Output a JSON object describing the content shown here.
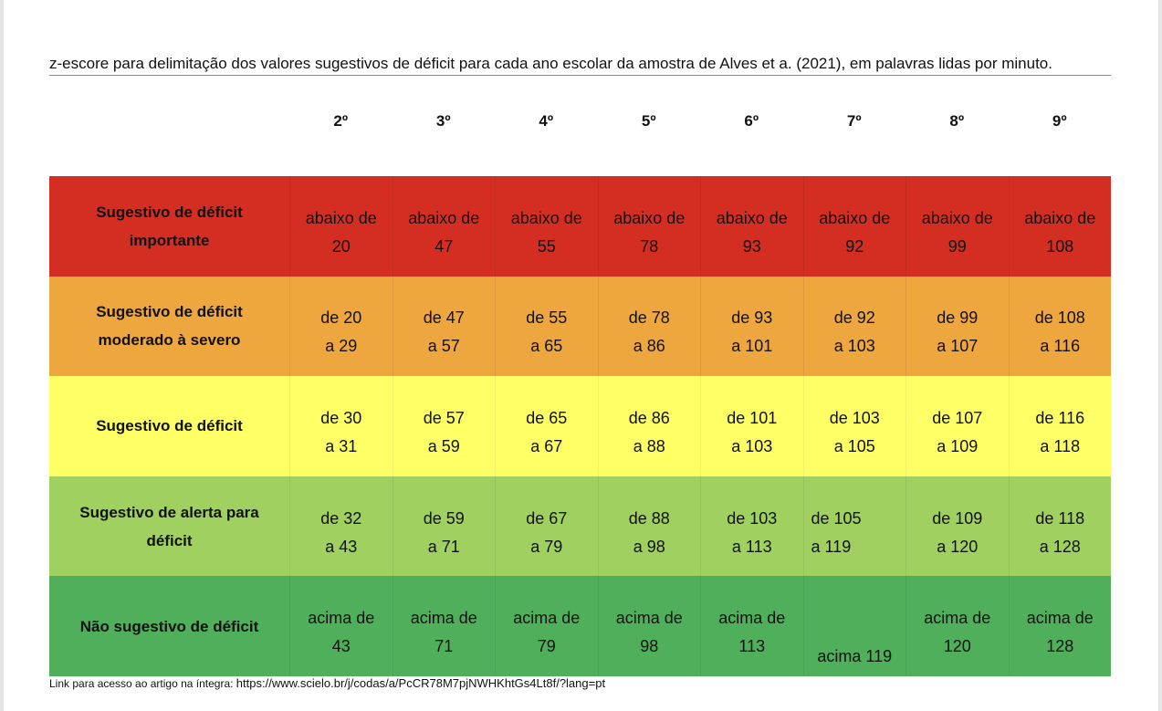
{
  "caption": "z-escore para delimitação dos valores sugestivos de déficit para cada ano escolar da amostra de Alves et a. (2021), em palavras lidas por minuto.",
  "grades": [
    "2º",
    "3º",
    "4º",
    "5º",
    "6º",
    "7º",
    "8º",
    "9º"
  ],
  "rows": [
    {
      "label": "Sugestivo de déficit importante",
      "color": "#d42e22",
      "cells": [
        [
          "abaixo de",
          "20"
        ],
        [
          "abaixo de",
          "47"
        ],
        [
          "abaixo de",
          "55"
        ],
        [
          "abaixo de",
          "78"
        ],
        [
          "abaixo de",
          "93"
        ],
        [
          "abaixo de",
          "92"
        ],
        [
          "abaixo de",
          "99"
        ],
        [
          "abaixo de",
          "108"
        ]
      ]
    },
    {
      "label": "Sugestivo de déficit moderado à severo",
      "color": "#eea63f",
      "cells": [
        [
          "de 20",
          "a 29"
        ],
        [
          "de 47",
          "a 57"
        ],
        [
          "de 55",
          "a 65"
        ],
        [
          "de 78",
          "a 86"
        ],
        [
          "de 93",
          "a 101"
        ],
        [
          "de 92",
          "a 103"
        ],
        [
          "de 99",
          "a 107"
        ],
        [
          "de 108",
          "a 116"
        ]
      ]
    },
    {
      "label": "Sugestivo de déficit",
      "color": "#ffff66",
      "cells": [
        [
          "de 30",
          "a 31"
        ],
        [
          "de 57",
          "a 59"
        ],
        [
          "de 65",
          "a 67"
        ],
        [
          "de 86",
          "a 88"
        ],
        [
          "de 101",
          "a 103"
        ],
        [
          "de 103",
          "a 105"
        ],
        [
          "de 107",
          "a 109"
        ],
        [
          "de 116",
          "a 118"
        ]
      ]
    },
    {
      "label": "Sugestivo de alerta para déficit",
      "color": "#a0d060",
      "cells": [
        [
          "de 32",
          "a 43"
        ],
        [
          "de 59",
          "a 71"
        ],
        [
          "de 67",
          "a 79"
        ],
        [
          "de 88",
          "a 98"
        ],
        [
          "de 103",
          "a 113"
        ],
        [
          "de 105",
          "a 119"
        ],
        [
          "de 109",
          "a 120"
        ],
        [
          "de 118",
          "a 128"
        ]
      ]
    },
    {
      "label": "Não sugestivo de déficit",
      "color": "#4faf5b",
      "cells": [
        [
          "acima de",
          "43"
        ],
        [
          "acima de",
          "71"
        ],
        [
          "acima de",
          "79"
        ],
        [
          "acima de",
          "98"
        ],
        [
          "acima de",
          "113"
        ],
        [
          "acima 119"
        ],
        [
          "acima de",
          "120"
        ],
        [
          "acima de",
          "128"
        ]
      ]
    }
  ],
  "footer": {
    "prefix": "Link para acesso ao artigo na íntegra: ",
    "url": "https://www.scielo.br/j/codas/a/PcCR78M7pjNWHKhtGs4Lt8f/?lang=pt"
  }
}
